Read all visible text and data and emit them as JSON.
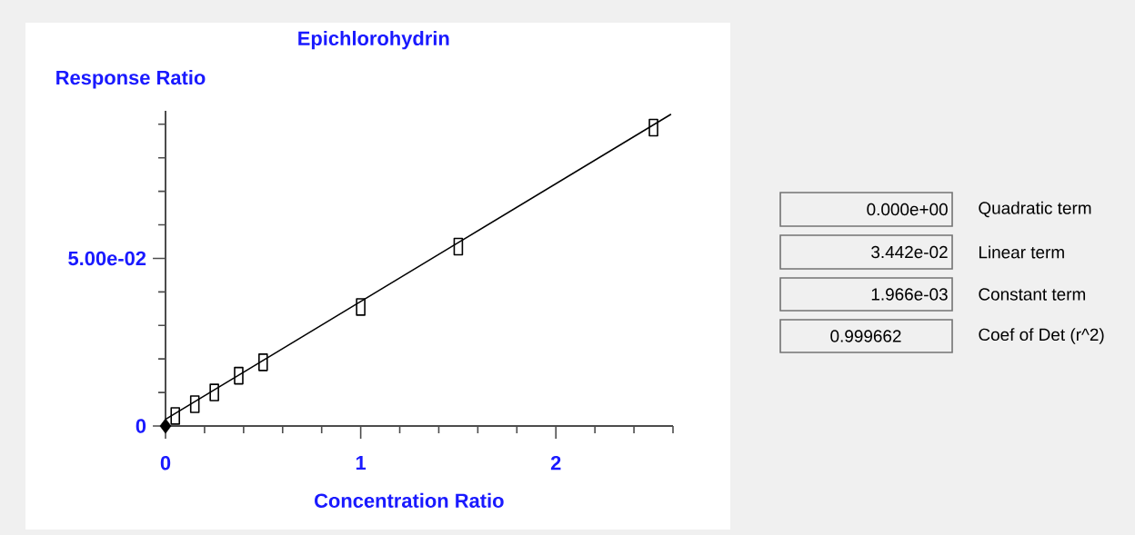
{
  "chart_data": {
    "type": "scatter",
    "title": "Epichlorohydrin",
    "xlabel": "Concentration Ratio",
    "ylabel": "Response Ratio",
    "xlim": [
      0,
      2.6
    ],
    "ylim": [
      0,
      0.094
    ],
    "xticks": [
      0,
      {
        "value": 0.2,
        "label": null
      },
      {
        "value": 0.4,
        "label": null
      },
      {
        "value": 0.6,
        "label": null
      },
      {
        "value": 0.8,
        "label": null
      },
      1,
      {
        "value": 1.2,
        "label": null
      },
      {
        "value": 1.4,
        "label": null
      },
      {
        "value": 1.6,
        "label": null
      },
      {
        "value": 1.8,
        "label": null
      },
      2,
      {
        "value": 2.2,
        "label": null
      },
      {
        "value": 2.4,
        "label": null
      },
      {
        "value": 2.6,
        "label": null
      }
    ],
    "yticks": [
      0,
      {
        "value": 0.01,
        "label": null
      },
      {
        "value": 0.02,
        "label": null
      },
      {
        "value": 0.03,
        "label": null
      },
      {
        "value": 0.04,
        "label": null
      },
      {
        "value": 0.05,
        "label": "5.00e-02"
      },
      {
        "value": 0.06,
        "label": null
      },
      {
        "value": 0.07,
        "label": null
      },
      {
        "value": 0.08,
        "label": null
      },
      {
        "value": 0.09,
        "label": null
      }
    ],
    "annotations": [
      "0.000e+00",
      "Quadratic term",
      "3.442e-02",
      "Linear term",
      "1.966e-03",
      "Constant term",
      "0.999662",
      "Coef of Det (r^2)"
    ],
    "series": [
      {
        "marker": "square",
        "color": "#000000",
        "x": [
          0.05,
          0.15,
          0.25,
          0.375,
          0.5,
          1.0,
          1.5,
          2.5
        ],
        "values": [
          0.003,
          0.0065,
          0.01,
          0.015,
          0.019,
          0.0355,
          0.0535,
          0.089
        ]
      },
      {
        "type": "line",
        "marker": "none",
        "color": "#000000",
        "x": [
          0,
          2.59
        ],
        "values": [
          0.002,
          0.093
        ]
      },
      {
        "type": "scatter",
        "marker": "diamond",
        "color": "#000000",
        "x": [
          0
        ],
        "values": [
          0
        ]
      }
    ]
  }
}
